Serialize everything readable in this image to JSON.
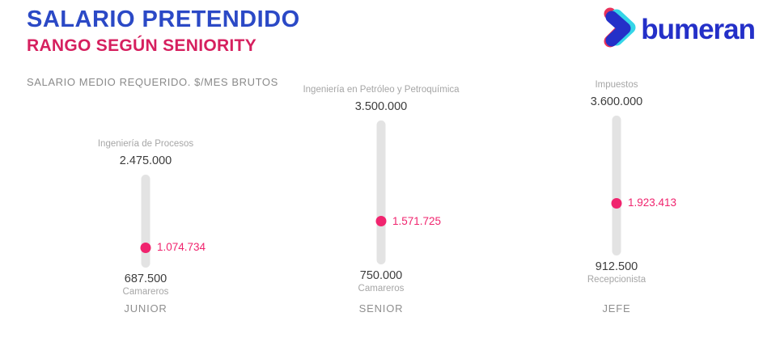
{
  "header": {
    "title": "SALARIO PRETENDIDO",
    "subtitle": "RANGO SEGÚN SENIORITY",
    "logo_text": "bumeran"
  },
  "colors": {
    "title_blue": "#2B49C6",
    "subtitle_crimson": "#D6205F",
    "dot_pink": "#F0246E",
    "bar_gray": "#E3E3E3",
    "logo_blue": "#2430C8"
  },
  "chart_data": {
    "type": "range-dot",
    "title": "SALARIO PRETENDIDO",
    "subtitle": "RANGO SEGÚN SENIORITY",
    "axis_label": "SALARIO MEDIO REQUERIDO. $/MES BRUTOS",
    "categories": [
      "JUNIOR",
      "SENIOR",
      "JEFE"
    ],
    "value_axis": {
      "hidden": true,
      "approx_range": [
        687500,
        3600000
      ],
      "grid": false,
      "legend": "none"
    },
    "groups": [
      {
        "seniority": "JUNIOR",
        "max_label": "Ingeniería de Procesos",
        "max_value": 2475000,
        "max_value_text": "2.475.000",
        "median_value": 1074734,
        "median_value_text": "1.074.734",
        "min_value": 687500,
        "min_value_text": "687.500",
        "min_label": "Camareros"
      },
      {
        "seniority": "SENIOR",
        "max_label": "Ingeniería en Petróleo y Petroquímica",
        "max_value": 3500000,
        "max_value_text": "3.500.000",
        "median_value": 1571725,
        "median_value_text": "1.571.725",
        "min_value": 750000,
        "min_value_text": "750.000",
        "min_label": "Camareros"
      },
      {
        "seniority": "JEFE",
        "max_label": "Impuestos",
        "max_value": 3600000,
        "max_value_text": "3.600.000",
        "median_value": 1923413,
        "median_value_text": "1.923.413",
        "min_value": 912500,
        "min_value_text": "912.500",
        "min_label": "Recepcionista"
      }
    ]
  }
}
